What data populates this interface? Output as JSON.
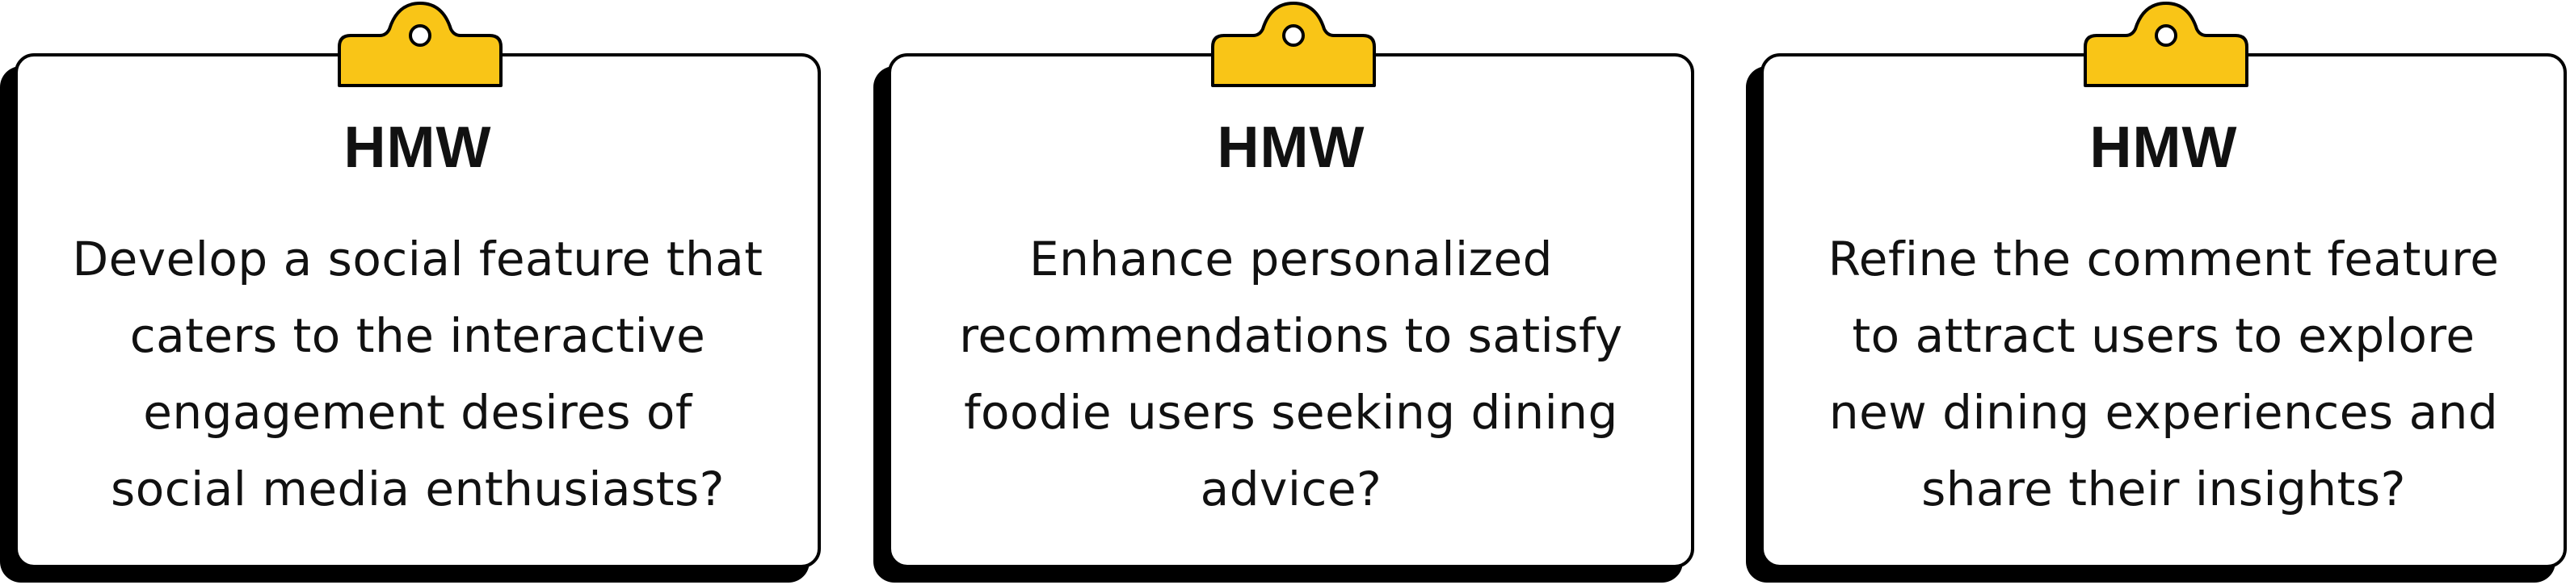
{
  "colors": {
    "clip_fill": "#F9C517",
    "outline": "#000000",
    "card_fill": "#FFFFFF",
    "shadow": "#000000"
  },
  "cards": [
    {
      "title": "HMW",
      "lines": [
        "Develop a social feature that",
        "caters to the interactive",
        "engagement desires of",
        "social media enthusiasts?"
      ]
    },
    {
      "title": "HMW",
      "lines": [
        "Enhance personalized",
        "recommendations to satisfy",
        "foodie users seeking dining",
        "advice?"
      ]
    },
    {
      "title": "HMW",
      "lines": [
        "Refine the comment feature",
        "to attract users to explore",
        "new dining experiences and",
        "share their insights?"
      ]
    }
  ]
}
